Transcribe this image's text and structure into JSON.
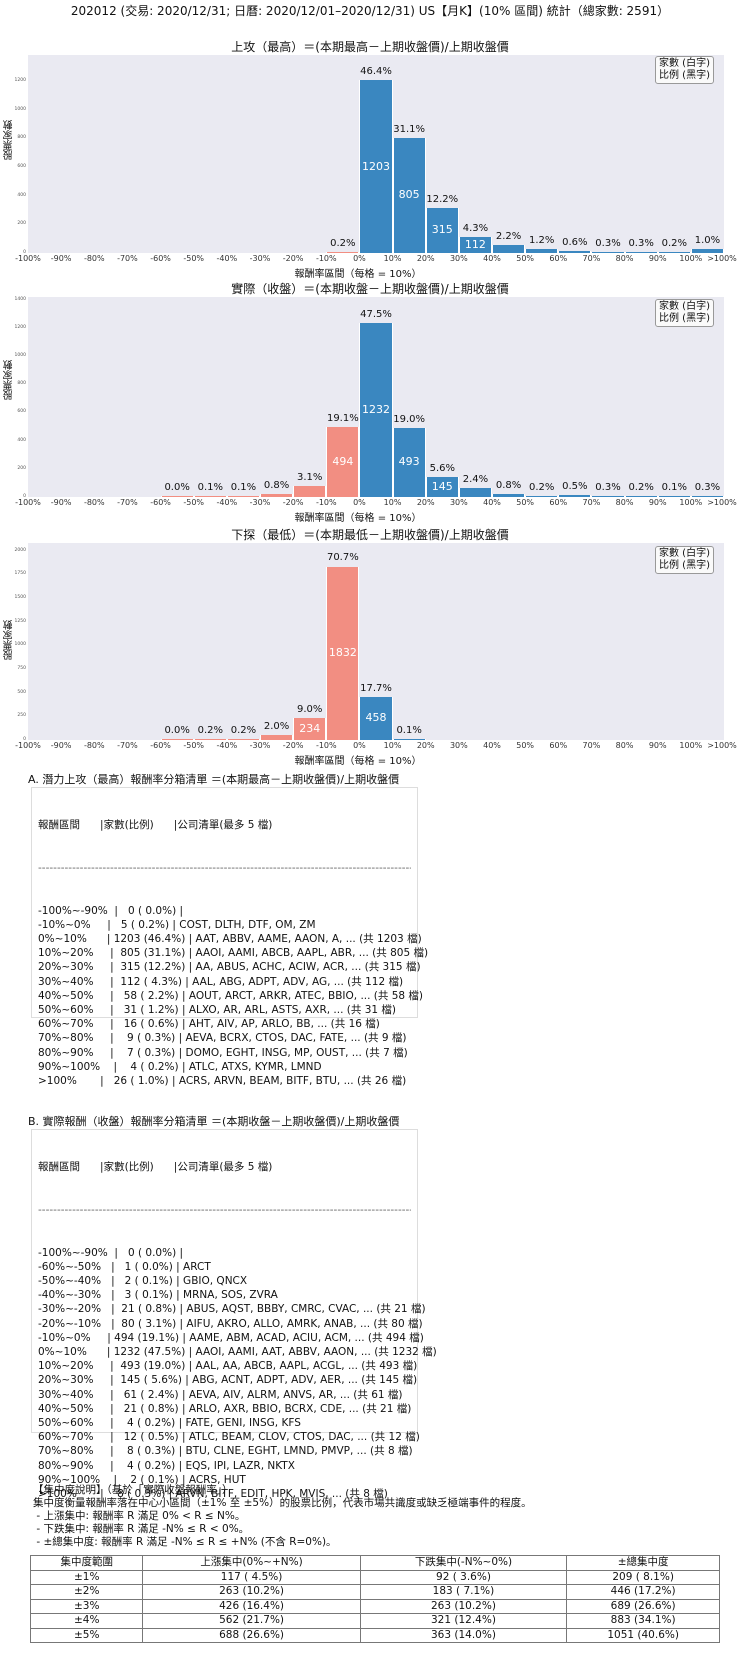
{
  "header": {
    "title": "202012 (交易: 2020/12/31; 日曆: 2020/12/01–2020/12/31) US【月K】(10% 區間) 統計（總家數: 2591）"
  },
  "colors": {
    "positive": "#3a87c0",
    "negative": "#f28e82",
    "plot_bg": "#eaeaf2"
  },
  "chart_data": [
    {
      "type": "bar",
      "title": "上攻（最高）＝(本期最高－上期收盤價)/上期收盤價",
      "xlabel": "報酬率區間（每格 = 10%）",
      "ylabel": "股票家數",
      "legend": "家數 (白字)\n比例 (黑字)",
      "legend_line1": "家數 (白字)",
      "legend_line2": "比例 (黑字)",
      "ylim": [
        0,
        1380
      ],
      "yticks": [
        0,
        200,
        400,
        600,
        800,
        1000,
        1200
      ],
      "categories": [
        "-100%~-90%",
        "-90%~-80%",
        "-80%~-70%",
        "-70%~-60%",
        "-60%~-50%",
        "-50%~-40%",
        "-40%~-30%",
        "-30%~-20%",
        "-20%~-10%",
        "-10%~0%",
        "0%~10%",
        "10%~20%",
        "20%~30%",
        "30%~40%",
        "40%~50%",
        "50%~60%",
        "60%~70%",
        "70%~80%",
        "80%~90%",
        "90%~100%",
        ">100%"
      ],
      "values": [
        0,
        0,
        0,
        0,
        0,
        0,
        0,
        0,
        0,
        5,
        1203,
        805,
        315,
        112,
        58,
        31,
        16,
        9,
        7,
        4,
        26
      ],
      "percent_labels": [
        "",
        "",
        "",
        "",
        "",
        "",
        "",
        "",
        "",
        "0.2%",
        "46.4%",
        "31.1%",
        "12.2%",
        "4.3%",
        "2.2%",
        "1.2%",
        "0.6%",
        "0.3%",
        "0.3%",
        "0.2%",
        "1.0%"
      ]
    },
    {
      "type": "bar",
      "title": "實際（收盤）＝(本期收盤－上期收盤價)/上期收盤價",
      "xlabel": "報酬率區間（每格 = 10%）",
      "ylabel": "股票家數",
      "legend_line1": "家數 (白字)",
      "legend_line2": "比例 (黑字)",
      "ylim": [
        0,
        1420
      ],
      "yticks": [
        0,
        200,
        400,
        600,
        800,
        1000,
        1200,
        1400
      ],
      "categories": [
        "-100%~-90%",
        "-90%~-80%",
        "-80%~-70%",
        "-70%~-60%",
        "-60%~-50%",
        "-50%~-40%",
        "-40%~-30%",
        "-30%~-20%",
        "-20%~-10%",
        "-10%~0%",
        "0%~10%",
        "10%~20%",
        "20%~30%",
        "30%~40%",
        "40%~50%",
        "50%~60%",
        "60%~70%",
        "70%~80%",
        "80%~90%",
        "90%~100%",
        ">100%"
      ],
      "values": [
        0,
        0,
        0,
        0,
        1,
        2,
        3,
        21,
        80,
        494,
        1232,
        493,
        145,
        61,
        21,
        4,
        12,
        8,
        4,
        2,
        8
      ],
      "percent_labels": [
        "",
        "",
        "",
        "",
        "0.0%",
        "0.1%",
        "0.1%",
        "0.8%",
        "3.1%",
        "19.1%",
        "47.5%",
        "19.0%",
        "5.6%",
        "2.4%",
        "0.8%",
        "0.2%",
        "0.5%",
        "0.3%",
        "0.2%",
        "0.1%",
        "0.3%"
      ]
    },
    {
      "type": "bar",
      "title": "下探（最低）＝(本期最低－上期收盤價)/上期收盤價",
      "xlabel": "報酬率區間（每格 = 10%）",
      "ylabel": "股票家數",
      "legend_line1": "家數 (白字)",
      "legend_line2": "比例 (黑字)",
      "ylim": [
        0,
        2080
      ],
      "yticks": [
        0,
        250,
        500,
        750,
        1000,
        1250,
        1500,
        1750,
        2000
      ],
      "categories": [
        "-100%~-90%",
        "-90%~-80%",
        "-80%~-70%",
        "-70%~-60%",
        "-60%~-50%",
        "-50%~-40%",
        "-40%~-30%",
        "-30%~-20%",
        "-20%~-10%",
        "-10%~0%",
        "0%~10%",
        "10%~20%",
        "20%~30%",
        "30%~40%",
        "40%~50%",
        "50%~60%",
        "60%~70%",
        "70%~80%",
        "80%~90%",
        "90%~100%",
        ">100%"
      ],
      "values": [
        0,
        0,
        0,
        0,
        1,
        5,
        5,
        53,
        234,
        1832,
        458,
        3,
        0,
        0,
        0,
        0,
        0,
        0,
        0,
        0,
        0
      ],
      "percent_labels": [
        "",
        "",
        "",
        "",
        "0.0%",
        "0.2%",
        "0.2%",
        "2.0%",
        "9.0%",
        "70.7%",
        "17.7%",
        "0.1%",
        "",
        "",
        "",
        "",
        "",
        "",
        "",
        "",
        ""
      ]
    }
  ],
  "xticks": [
    "-100%",
    "-90%",
    "-80%",
    "-70%",
    "-60%",
    "-50%",
    "-40%",
    "-30%",
    "-20%",
    "-10%",
    "0%",
    "10%",
    "20%",
    "30%",
    "40%",
    "50%",
    "60%",
    "70%",
    "80%",
    "90%",
    "100%",
    ">100%"
  ],
  "list_a": {
    "title": "A. 潛力上攻（最高）報酬率分箱清單 ＝(本期最高－上期收盤價)/上期收盤價",
    "header": "報酬區間      |家數(比例)      |公司清單(最多 5 檔)",
    "separator": "----------------------------------------------------------------------------------------------------------------------------------------",
    "rows": [
      "-100%~-90%  |   0 ( 0.0%) |",
      "-10%~0%     |   5 ( 0.2%) | COST, DLTH, DTF, OM, ZM",
      "0%~10%      | 1203 (46.4%) | AAT, ABBV, AAME, AAON, A, ... (共 1203 檔)",
      "10%~20%     |  805 (31.1%) | AAOI, AAMI, ABCB, AAPL, ABR, ... (共 805 檔)",
      "20%~30%     |  315 (12.2%) | AA, ABUS, ACHC, ACIW, ACR, ... (共 315 檔)",
      "30%~40%     |  112 ( 4.3%) | AAL, ABG, ADPT, ADV, AG, ... (共 112 檔)",
      "40%~50%     |   58 ( 2.2%) | AOUT, ARCT, ARKR, ATEC, BBIO, ... (共 58 檔)",
      "50%~60%     |   31 ( 1.2%) | ALXO, AR, ARL, ASTS, AXR, ... (共 31 檔)",
      "60%~70%     |   16 ( 0.6%) | AHT, AIV, AP, ARLO, BB, ... (共 16 檔)",
      "70%~80%     |    9 ( 0.3%) | AEVA, BCRX, CTOS, DAC, FATE, ... (共 9 檔)",
      "80%~90%     |    7 ( 0.3%) | DOMO, EGHT, INSG, MP, OUST, ... (共 7 檔)",
      "90%~100%    |    4 ( 0.2%) | ATLC, ATXS, KYMR, LMND",
      ">100%       |   26 ( 1.0%) | ACRS, ARVN, BEAM, BITF, BTU, ... (共 26 檔)"
    ]
  },
  "list_b": {
    "title": "B. 實際報酬（收盤）報酬率分箱清單 ＝(本期收盤－上期收盤價)/上期收盤價",
    "header": "報酬區間      |家數(比例)      |公司清單(最多 5 檔)",
    "separator": "----------------------------------------------------------------------------------------------------------------------------------------",
    "rows": [
      "-100%~-90%  |   0 ( 0.0%) |",
      "-60%~-50%   |   1 ( 0.0%) | ARCT",
      "-50%~-40%   |   2 ( 0.1%) | GBIO, QNCX",
      "-40%~-30%   |   3 ( 0.1%) | MRNA, SOS, ZVRA",
      "-30%~-20%   |  21 ( 0.8%) | ABUS, AQST, BBBY, CMRC, CVAC, ... (共 21 檔)",
      "-20%~-10%   |  80 ( 3.1%) | AIFU, AKRO, ALLO, AMRK, ANAB, ... (共 80 檔)",
      "-10%~0%     | 494 (19.1%) | AAME, ABM, ACAD, ACIU, ACM, ... (共 494 檔)",
      "0%~10%      | 1232 (47.5%) | AAOI, AAMI, AAT, ABBV, AAON, ... (共 1232 檔)",
      "10%~20%     |  493 (19.0%) | AAL, AA, ABCB, AAPL, ACGL, ... (共 493 檔)",
      "20%~30%     |  145 ( 5.6%) | ABG, ACNT, ADPT, ADV, AER, ... (共 145 檔)",
      "30%~40%     |   61 ( 2.4%) | AEVA, AIV, ALRM, ANVS, AR, ... (共 61 檔)",
      "40%~50%     |   21 ( 0.8%) | ARLO, AXR, BBIO, BCRX, CDE, ... (共 21 檔)",
      "50%~60%     |    4 ( 0.2%) | FATE, GENI, INSG, KFS",
      "60%~70%     |   12 ( 0.5%) | ATLC, BEAM, CLOV, CTOS, DAC, ... (共 12 檔)",
      "70%~80%     |    8 ( 0.3%) | BTU, CLNE, EGHT, LMND, PMVP, ... (共 8 檔)",
      "80%~90%     |    4 ( 0.2%) | EQS, IPI, LAZR, NKTX",
      "90%~100%    |    2 ( 0.1%) | ACRS, HUT",
      ">100%       |    8 ( 0.3%) | ARVN, BITF, EDIT, HPK, MVIS, ... (共 8 檔)"
    ]
  },
  "concentration": {
    "title": "【集中度說明】（基於「實際收盤報酬率」）",
    "desc": "集中度衡量報酬率落在中心小區間（±1% 至 ±5%）的股票比例，代表市場共識度或缺乏極端事件的程度。",
    "bullets": [
      " - 上漲集中: 報酬率 R 滿足 0% < R ≤ N%。",
      " - 下跌集中: 報酬率 R 滿足 -N% ≤ R < 0%。",
      " - ±總集中度: 報酬率 R 滿足 -N% ≤ R ≤ +N% (不含 R=0%)。"
    ],
    "table": {
      "headers": [
        "集中度範圍",
        "上漲集中(0%~+N%)",
        "下跌集中(-N%~0%)",
        "±總集中度"
      ],
      "rows": [
        [
          "±1%",
          "117 ( 4.5%)",
          "92 ( 3.6%)",
          "209 ( 8.1%)"
        ],
        [
          "±2%",
          "263 (10.2%)",
          "183 ( 7.1%)",
          "446 (17.2%)"
        ],
        [
          "±3%",
          "426 (16.4%)",
          "263 (10.2%)",
          "689 (26.6%)"
        ],
        [
          "±4%",
          "562 (21.7%)",
          "321 (12.4%)",
          "883 (34.1%)"
        ],
        [
          "±5%",
          "688 (26.6%)",
          "363 (14.0%)",
          "1051 (40.6%)"
        ]
      ]
    }
  }
}
